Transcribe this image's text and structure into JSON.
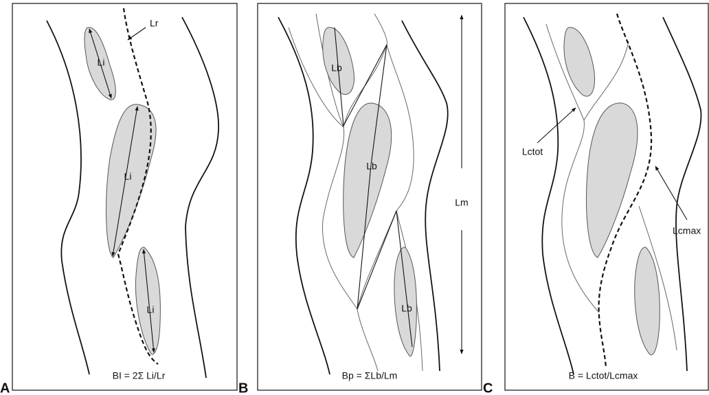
{
  "panels": [
    {
      "letter": "A",
      "formula": "BI = 2Σ Li/Lr",
      "labels": [
        "Lr",
        "Li",
        "Li",
        "Li"
      ]
    },
    {
      "letter": "B",
      "formula": "Bp = ΣLb/Lm",
      "labels": [
        "Lb",
        "Lb",
        "Lb",
        "Lm"
      ]
    },
    {
      "letter": "C",
      "formula": "B = Lctot/Lcmax",
      "labels": [
        "Lctot",
        "Lcmax"
      ]
    }
  ]
}
